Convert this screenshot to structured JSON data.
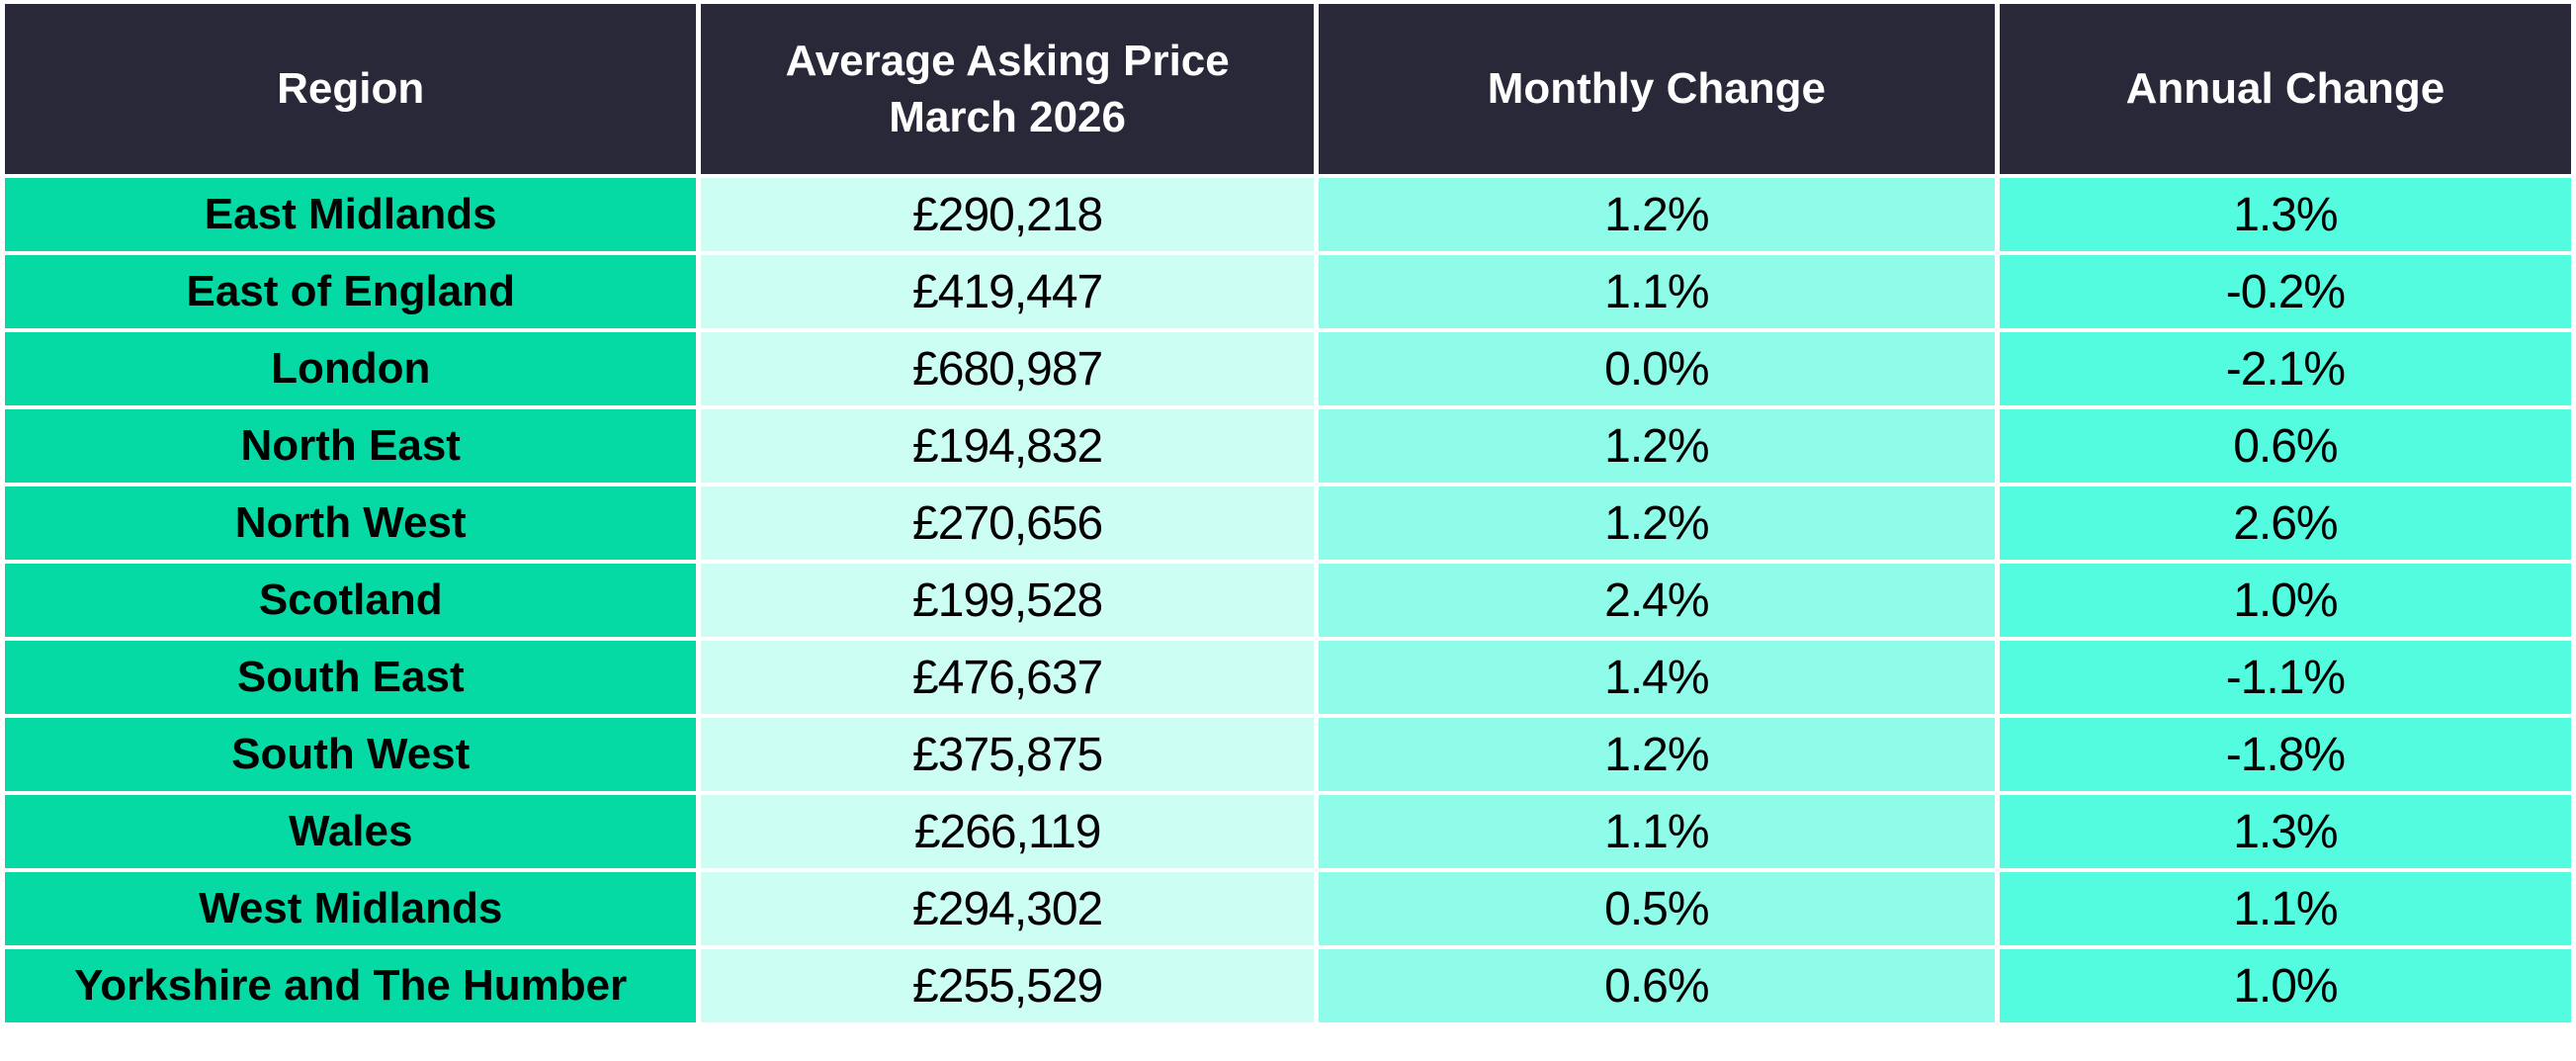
{
  "colors": {
    "header_bg": "#282838",
    "header_text": "#FFFFFF",
    "region_bg": "#05DAA5",
    "price_bg": "#CDFEF3",
    "monthly_bg": "#8EFCE8",
    "annual_bg": "#53FBDF",
    "body_text": "#000000",
    "divider": "#FFFFFF"
  },
  "chart_data": {
    "type": "table",
    "columns": [
      "Region",
      "Average Asking Price March 2026",
      "Monthly Change",
      "Annual Change"
    ],
    "rows": [
      {
        "region": "East Midlands",
        "price": "£290,218",
        "monthly": "1.2%",
        "annual": "1.3%"
      },
      {
        "region": "East of England",
        "price": "£419,447",
        "monthly": "1.1%",
        "annual": "-0.2%"
      },
      {
        "region": "London",
        "price": "£680,987",
        "monthly": "0.0%",
        "annual": "-2.1%"
      },
      {
        "region": "North East",
        "price": "£194,832",
        "monthly": "1.2%",
        "annual": "0.6%"
      },
      {
        "region": "North West",
        "price": "£270,656",
        "monthly": "1.2%",
        "annual": "2.6%"
      },
      {
        "region": "Scotland",
        "price": "£199,528",
        "monthly": "2.4%",
        "annual": "1.0%"
      },
      {
        "region": "South East",
        "price": "£476,637",
        "monthly": "1.4%",
        "annual": "-1.1%"
      },
      {
        "region": "South West",
        "price": "£375,875",
        "monthly": "1.2%",
        "annual": "-1.8%"
      },
      {
        "region": "Wales",
        "price": "£266,119",
        "monthly": "1.1%",
        "annual": "1.3%"
      },
      {
        "region": "West Midlands",
        "price": "£294,302",
        "monthly": "0.5%",
        "annual": "1.1%"
      },
      {
        "region": "Yorkshire and The Humber",
        "price": "£255,529",
        "monthly": "0.6%",
        "annual": "1.0%"
      }
    ]
  }
}
